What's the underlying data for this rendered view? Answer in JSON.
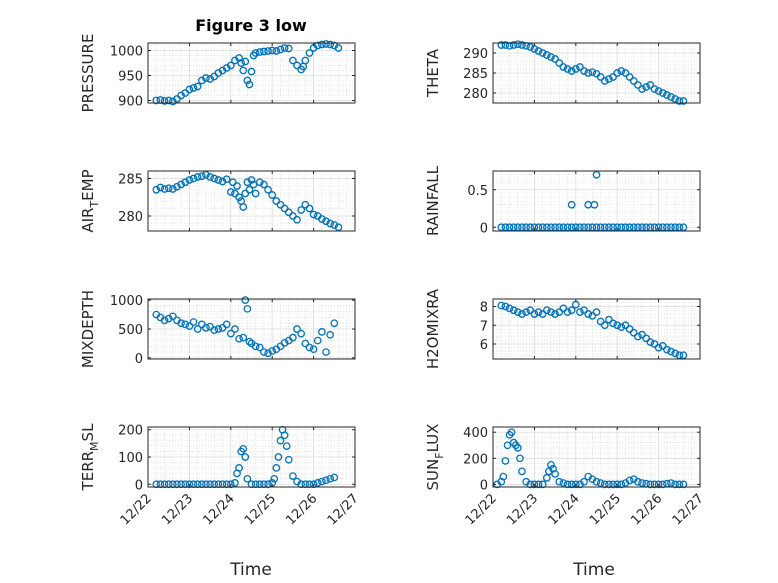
{
  "figure": {
    "title": "Figure 3 low"
  },
  "shared": {
    "xlabel": "Time",
    "xticks": [
      "12/22",
      "12/23",
      "12/24",
      "12/25",
      "12/26",
      "12/27"
    ],
    "xlim": [
      0,
      5
    ],
    "marker_color": "#0072BD"
  },
  "chart_data": [
    {
      "id": "pressure",
      "type": "scatter",
      "ylabel": "PRESSURE",
      "ylim": [
        895,
        1015
      ],
      "yticks": [
        900,
        950,
        1000
      ],
      "grid": true,
      "title": "Figure 3 low",
      "x": [
        0.2,
        0.3,
        0.4,
        0.5,
        0.6,
        0.7,
        0.8,
        0.9,
        1.0,
        1.1,
        1.2,
        1.3,
        1.4,
        1.5,
        1.6,
        1.7,
        1.8,
        1.9,
        2.0,
        2.1,
        2.2,
        2.25,
        2.3,
        2.35,
        2.4,
        2.45,
        2.5,
        2.55,
        2.6,
        2.7,
        2.8,
        2.9,
        3.0,
        3.1,
        3.2,
        3.3,
        3.4,
        3.5,
        3.6,
        3.7,
        3.75,
        3.8,
        3.9,
        4.0,
        4.1,
        4.2,
        4.3,
        4.4,
        4.5,
        4.6
      ],
      "y": [
        900,
        901,
        899,
        900,
        898,
        903,
        910,
        915,
        922,
        925,
        928,
        940,
        945,
        943,
        948,
        955,
        960,
        965,
        970,
        980,
        985,
        975,
        960,
        978,
        940,
        932,
        958,
        990,
        995,
        997,
        998,
        999,
        1000,
        999,
        1002,
        1005,
        1004,
        980,
        970,
        962,
        968,
        980,
        995,
        1005,
        1010,
        1012,
        1013,
        1012,
        1010,
        1005
      ]
    },
    {
      "id": "theta",
      "type": "scatter",
      "ylabel": "THETA",
      "ylim": [
        277.5,
        292.5
      ],
      "yticks": [
        280,
        285,
        290
      ],
      "grid": true,
      "x": [
        0.2,
        0.3,
        0.4,
        0.5,
        0.6,
        0.7,
        0.8,
        0.9,
        1.0,
        1.1,
        1.2,
        1.3,
        1.4,
        1.5,
        1.6,
        1.7,
        1.8,
        1.9,
        2.0,
        2.1,
        2.2,
        2.3,
        2.4,
        2.5,
        2.6,
        2.7,
        2.8,
        2.9,
        3.0,
        3.1,
        3.2,
        3.3,
        3.4,
        3.5,
        3.6,
        3.7,
        3.8,
        3.9,
        4.0,
        4.1,
        4.2,
        4.3,
        4.4,
        4.5,
        4.6
      ],
      "y": [
        292,
        292,
        291.8,
        292,
        292.2,
        292,
        291.8,
        291.5,
        291,
        290.5,
        290,
        289.5,
        289,
        288.5,
        287.5,
        286.5,
        286,
        285.5,
        286,
        286.5,
        285.5,
        285,
        285.2,
        284.8,
        284,
        283,
        283.5,
        284,
        285,
        285.5,
        285,
        284,
        283,
        282,
        281,
        281.5,
        282,
        281,
        280.5,
        280,
        279.5,
        279,
        278.5,
        278,
        278
      ]
    },
    {
      "id": "air_temp",
      "type": "scatter",
      "ylabel": "AIR_TEMP",
      "ylim": [
        278,
        286
      ],
      "yticks": [
        280,
        285
      ],
      "grid": true,
      "x": [
        0.2,
        0.3,
        0.4,
        0.5,
        0.6,
        0.7,
        0.8,
        0.9,
        1.0,
        1.1,
        1.2,
        1.3,
        1.4,
        1.5,
        1.6,
        1.7,
        1.8,
        1.9,
        2.0,
        2.05,
        2.1,
        2.15,
        2.2,
        2.25,
        2.3,
        2.35,
        2.4,
        2.45,
        2.5,
        2.55,
        2.6,
        2.7,
        2.8,
        2.9,
        3.0,
        3.1,
        3.2,
        3.3,
        3.4,
        3.5,
        3.6,
        3.7,
        3.8,
        3.9,
        4.0,
        4.1,
        4.2,
        4.3,
        4.4,
        4.5,
        4.6
      ],
      "y": [
        283.5,
        283.8,
        283.6,
        283.7,
        283.6,
        283.9,
        284.2,
        284.5,
        284.8,
        285,
        285.2,
        285.3,
        285.5,
        285.2,
        285,
        284.8,
        284.6,
        284.9,
        283.2,
        284.5,
        283,
        284,
        282.5,
        282,
        281.2,
        283,
        284.5,
        283.5,
        284.8,
        284.2,
        283,
        284.5,
        284.2,
        283.5,
        282.8,
        282,
        281.5,
        281,
        280.5,
        280,
        279.5,
        280.8,
        281.5,
        281,
        280.2,
        280,
        279.6,
        279.3,
        279,
        278.8,
        278.5
      ]
    },
    {
      "id": "rainfall",
      "type": "scatter",
      "ylabel": "RAINFALL",
      "ylim": [
        -0.05,
        0.75
      ],
      "yticks": [
        0,
        0.5
      ],
      "grid": true,
      "x": [
        0.2,
        0.3,
        0.4,
        0.5,
        0.6,
        0.7,
        0.8,
        0.9,
        1.0,
        1.1,
        1.2,
        1.3,
        1.4,
        1.5,
        1.6,
        1.7,
        1.8,
        1.9,
        2.0,
        2.1,
        2.2,
        2.3,
        2.4,
        2.5,
        2.6,
        2.7,
        2.8,
        2.9,
        3.0,
        3.1,
        3.2,
        3.3,
        3.4,
        3.5,
        3.6,
        3.7,
        3.8,
        3.9,
        4.0,
        4.1,
        4.2,
        4.3,
        4.4,
        4.5,
        4.6,
        1.9,
        2.3,
        2.45,
        2.5
      ],
      "y": [
        0,
        0,
        0,
        0,
        0,
        0,
        0,
        0,
        0,
        0,
        0,
        0,
        0,
        0,
        0,
        0,
        0,
        0,
        0,
        0,
        0,
        0,
        0,
        0,
        0,
        0,
        0,
        0,
        0,
        0,
        0,
        0,
        0,
        0,
        0,
        0,
        0,
        0,
        0,
        0,
        0,
        0,
        0,
        0,
        0,
        0.3,
        0.3,
        0.3,
        0.7
      ]
    },
    {
      "id": "mixdepth",
      "type": "scatter",
      "ylabel": "MIXDEPTH",
      "ylim": [
        -20,
        1020
      ],
      "yticks": [
        0,
        500,
        1000
      ],
      "grid": true,
      "x": [
        0.2,
        0.3,
        0.4,
        0.5,
        0.6,
        0.7,
        0.8,
        0.9,
        1.0,
        1.1,
        1.2,
        1.3,
        1.4,
        1.5,
        1.6,
        1.7,
        1.8,
        1.9,
        2.0,
        2.1,
        2.2,
        2.3,
        2.35,
        2.4,
        2.45,
        2.5,
        2.6,
        2.7,
        2.8,
        2.9,
        3.0,
        3.1,
        3.2,
        3.3,
        3.4,
        3.5,
        3.6,
        3.7,
        3.8,
        3.9,
        4.0,
        4.1,
        4.2,
        4.3,
        4.4,
        4.5
      ],
      "y": [
        750,
        700,
        650,
        680,
        720,
        650,
        600,
        580,
        550,
        620,
        500,
        580,
        520,
        540,
        480,
        500,
        520,
        580,
        420,
        500,
        330,
        350,
        1000,
        850,
        280,
        250,
        200,
        180,
        100,
        80,
        120,
        150,
        200,
        260,
        300,
        350,
        500,
        420,
        250,
        180,
        150,
        300,
        450,
        100,
        400,
        600
      ]
    },
    {
      "id": "h2omixra",
      "type": "scatter",
      "ylabel": "H2OMIXRA",
      "ylim": [
        5.2,
        8.4
      ],
      "yticks": [
        6,
        7,
        8
      ],
      "grid": true,
      "x": [
        0.2,
        0.3,
        0.4,
        0.5,
        0.6,
        0.7,
        0.8,
        0.9,
        1.0,
        1.1,
        1.2,
        1.3,
        1.4,
        1.5,
        1.6,
        1.7,
        1.8,
        1.9,
        2.0,
        2.1,
        2.2,
        2.3,
        2.4,
        2.5,
        2.6,
        2.7,
        2.8,
        2.9,
        3.0,
        3.1,
        3.2,
        3.3,
        3.4,
        3.5,
        3.6,
        3.7,
        3.8,
        3.9,
        4.0,
        4.1,
        4.2,
        4.3,
        4.4,
        4.5,
        4.6
      ],
      "y": [
        8.05,
        8,
        7.9,
        7.8,
        7.7,
        7.6,
        7.7,
        7.8,
        7.6,
        7.7,
        7.6,
        7.8,
        7.7,
        7.6,
        7.7,
        7.9,
        7.7,
        7.8,
        8.1,
        7.7,
        7.8,
        7.6,
        7.5,
        7.7,
        7.2,
        7.0,
        7.3,
        7.1,
        7.0,
        6.9,
        7.0,
        6.8,
        6.6,
        6.4,
        6.5,
        6.3,
        6.1,
        6.0,
        5.8,
        5.9,
        5.7,
        5.6,
        5.5,
        5.4,
        5.4
      ]
    },
    {
      "id": "terr_msl",
      "type": "scatter",
      "ylabel": "TERR_MSL",
      "ylim": [
        -10,
        210
      ],
      "yticks": [
        0,
        100,
        200
      ],
      "grid": true,
      "x": [
        0.2,
        0.3,
        0.4,
        0.5,
        0.6,
        0.7,
        0.8,
        0.9,
        1.0,
        1.1,
        1.2,
        1.3,
        1.4,
        1.5,
        1.6,
        1.7,
        1.8,
        1.9,
        2.0,
        2.1,
        2.15,
        2.2,
        2.25,
        2.3,
        2.35,
        2.4,
        2.5,
        2.6,
        2.7,
        2.8,
        2.9,
        3.0,
        3.05,
        3.1,
        3.15,
        3.2,
        3.25,
        3.3,
        3.35,
        3.4,
        3.5,
        3.6,
        3.7,
        3.8,
        3.9,
        4.0,
        4.1,
        4.2,
        4.3,
        4.4,
        4.5
      ],
      "y": [
        0,
        0,
        0,
        0,
        0,
        0,
        0,
        0,
        0,
        0,
        0,
        0,
        0,
        0,
        0,
        0,
        0,
        0,
        0,
        5,
        40,
        60,
        120,
        130,
        100,
        20,
        0,
        0,
        0,
        0,
        0,
        5,
        20,
        60,
        100,
        160,
        200,
        180,
        140,
        90,
        30,
        10,
        0,
        0,
        0,
        0,
        5,
        10,
        15,
        20,
        25
      ]
    },
    {
      "id": "sun_flux",
      "type": "scatter",
      "ylabel": "SUN_FLUX",
      "ylim": [
        -20,
        440
      ],
      "yticks": [
        0,
        200,
        400
      ],
      "grid": true,
      "x": [
        0.1,
        0.2,
        0.25,
        0.3,
        0.35,
        0.4,
        0.45,
        0.5,
        0.55,
        0.6,
        0.65,
        0.7,
        0.8,
        0.9,
        1.0,
        1.1,
        1.2,
        1.3,
        1.35,
        1.4,
        1.45,
        1.5,
        1.6,
        1.7,
        1.8,
        1.9,
        2.0,
        2.1,
        2.2,
        2.3,
        2.4,
        2.5,
        2.6,
        2.7,
        2.8,
        2.9,
        3.0,
        3.1,
        3.2,
        3.3,
        3.4,
        3.5,
        3.6,
        3.7,
        3.8,
        3.9,
        4.0,
        4.1,
        4.2,
        4.3,
        4.4,
        4.5,
        4.6
      ],
      "y": [
        0,
        20,
        60,
        180,
        300,
        380,
        400,
        320,
        300,
        280,
        200,
        100,
        20,
        0,
        0,
        0,
        0,
        50,
        100,
        150,
        120,
        80,
        20,
        10,
        0,
        0,
        0,
        0,
        20,
        60,
        40,
        20,
        10,
        0,
        0,
        0,
        0,
        0,
        10,
        30,
        40,
        20,
        10,
        5,
        0,
        0,
        0,
        0,
        5,
        10,
        0,
        0,
        0
      ]
    }
  ]
}
